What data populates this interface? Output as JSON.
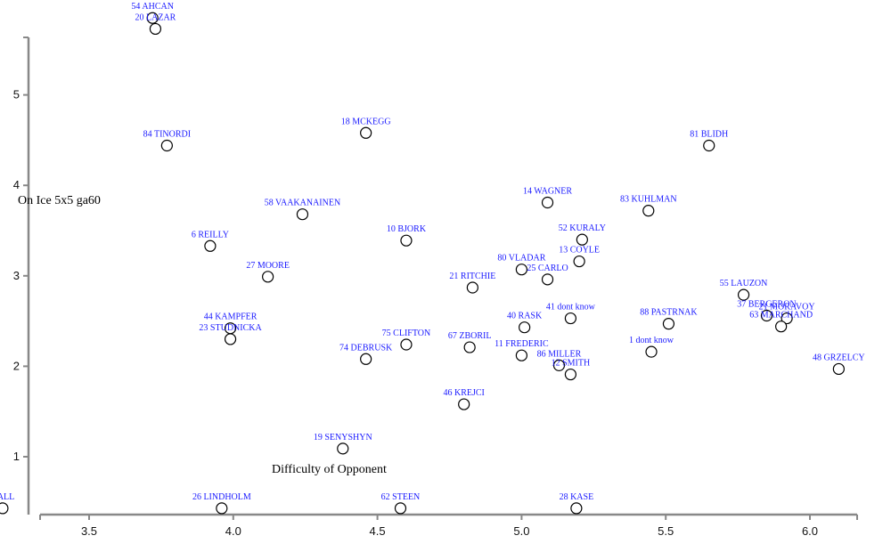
{
  "chart_data": {
    "type": "scatter",
    "xlabel": "Difficulty of Opponent",
    "ylabel": "On Ice 5x5 ga60",
    "xlim": [
      3.2,
      6.17
    ],
    "ylim": [
      0.62,
      5.62
    ],
    "x_ticks": [
      "3.5",
      "4.0",
      "4.5",
      "5.0",
      "5.5",
      "6.0"
    ],
    "y_ticks": [
      "1",
      "2",
      "3",
      "4",
      "5"
    ],
    "grid": false,
    "points": [
      {
        "label": "54 AHCAN",
        "x": 3.72,
        "y": 5.85
      },
      {
        "label": "20 LAZAR",
        "x": 3.73,
        "y": 5.73
      },
      {
        "label": "84 TINORDI",
        "x": 3.77,
        "y": 4.44
      },
      {
        "label": "18 MCKEGG",
        "x": 4.46,
        "y": 4.58
      },
      {
        "label": "81 BLIDH",
        "x": 5.65,
        "y": 4.44
      },
      {
        "label": "58 VAAKANAINEN",
        "x": 4.24,
        "y": 3.68
      },
      {
        "label": "14 WAGNER",
        "x": 5.09,
        "y": 3.81
      },
      {
        "label": "83 KUHLMAN",
        "x": 5.44,
        "y": 3.72
      },
      {
        "label": "6 REILLY",
        "x": 3.92,
        "y": 3.33
      },
      {
        "label": "10 BJORK",
        "x": 4.6,
        "y": 3.39
      },
      {
        "label": "52 KURALY",
        "x": 5.21,
        "y": 3.4
      },
      {
        "label": "13 COYLE",
        "x": 5.2,
        "y": 3.16
      },
      {
        "label": "80 VLADAR",
        "x": 5.0,
        "y": 3.07
      },
      {
        "label": "25 CARLO",
        "x": 5.09,
        "y": 2.96
      },
      {
        "label": "27 MOORE",
        "x": 4.12,
        "y": 2.99
      },
      {
        "label": "21 RITCHIE",
        "x": 4.83,
        "y": 2.87
      },
      {
        "label": "55 LAUZON",
        "x": 5.77,
        "y": 2.79
      },
      {
        "label": "37 BERGERON",
        "x": 5.85,
        "y": 2.56
      },
      {
        "label": "21 MORAVOY",
        "x": 5.92,
        "y": 2.53
      },
      {
        "label": "63 MARCHAND",
        "x": 5.9,
        "y": 2.44
      },
      {
        "label": "41 dont know",
        "x": 5.17,
        "y": 2.53
      },
      {
        "label": "40 RASK",
        "x": 5.01,
        "y": 2.43
      },
      {
        "label": "88 PASTRNAK",
        "x": 5.51,
        "y": 2.47
      },
      {
        "label": "44 KAMPFER",
        "x": 3.99,
        "y": 2.42
      },
      {
        "label": "23 STUDNICKA",
        "x": 3.99,
        "y": 2.3
      },
      {
        "label": "75 CLIFTON",
        "x": 4.6,
        "y": 2.24
      },
      {
        "label": "67 ZBORIL",
        "x": 4.82,
        "y": 2.21
      },
      {
        "label": "74 DEBRUSK",
        "x": 4.46,
        "y": 2.08
      },
      {
        "label": "11 FREDERIC",
        "x": 5.0,
        "y": 2.12
      },
      {
        "label": "1 dont know",
        "x": 5.45,
        "y": 2.16
      },
      {
        "label": "86 MILLER",
        "x": 5.13,
        "y": 2.01
      },
      {
        "label": "12 SMITH",
        "x": 5.17,
        "y": 1.91
      },
      {
        "label": "48 GRZELCY",
        "x": 6.1,
        "y": 1.97
      },
      {
        "label": "46 KREJCI",
        "x": 4.8,
        "y": 1.58
      },
      {
        "label": "19 SENYSHYN",
        "x": 4.38,
        "y": 1.09
      },
      {
        "label": "HALL",
        "x": 3.2,
        "y": 0.43
      },
      {
        "label": "26 LINDHOLM",
        "x": 3.96,
        "y": 0.43
      },
      {
        "label": "62 STEEN",
        "x": 4.58,
        "y": 0.43
      },
      {
        "label": "28 KASE",
        "x": 5.19,
        "y": 0.43
      }
    ]
  }
}
